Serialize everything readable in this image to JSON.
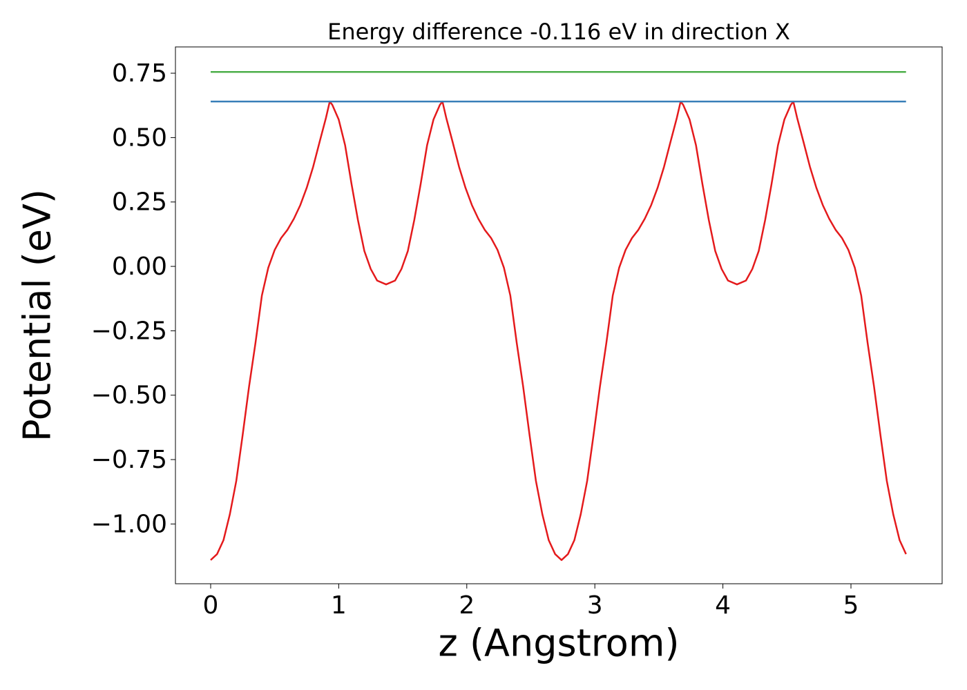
{
  "chart_data": {
    "type": "line",
    "title": "Energy difference -0.116 eV in direction X",
    "xlabel": "z (Angstrom)",
    "ylabel": "Potential (eV)",
    "xlim": [
      -0.275,
      5.712
    ],
    "ylim": [
      -1.232,
      0.852
    ],
    "xticks": [
      0,
      1,
      2,
      3,
      4,
      5
    ],
    "yticks": [
      {
        "value": -1,
        "label": "−1.00"
      },
      {
        "value": -0.75,
        "label": "−0.75"
      },
      {
        "value": -0.5,
        "label": "−0.50"
      },
      {
        "value": -0.25,
        "label": "−0.25"
      },
      {
        "value": 0,
        "label": "0.00"
      },
      0.25,
      {
        "value": 0.5,
        "label": "0.50"
      },
      0.75
    ],
    "grid": false,
    "series": [
      {
        "color": "#e41a1c",
        "x": [
          0,
          0.05,
          0.1,
          0.15,
          0.2,
          0.25,
          0.3,
          0.35,
          0.4,
          0.45,
          0.5,
          0.55,
          0.6,
          0.65,
          0.7,
          0.75,
          0.8,
          0.85,
          0.9,
          0.93,
          0.95,
          1.0,
          1.05,
          1.1,
          1.15,
          1.2,
          1.25,
          1.3,
          1.37,
          1.44,
          1.49,
          1.54,
          1.59,
          1.64,
          1.69,
          1.74,
          1.79,
          1.81,
          1.84,
          1.89,
          1.94,
          1.99,
          2.04,
          2.09,
          2.14,
          2.19,
          2.24,
          2.29,
          2.34,
          2.39,
          2.44,
          2.49,
          2.54,
          2.59,
          2.64,
          2.69,
          2.74,
          2.79,
          2.84,
          2.89,
          2.94,
          2.99,
          3.04,
          3.09,
          3.14,
          3.19,
          3.24,
          3.29,
          3.34,
          3.39,
          3.44,
          3.49,
          3.54,
          3.59,
          3.64,
          3.67,
          3.69,
          3.74,
          3.79,
          3.84,
          3.89,
          3.94,
          3.99,
          4.04,
          4.11,
          4.18,
          4.23,
          4.28,
          4.33,
          4.38,
          4.43,
          4.48,
          4.53,
          4.55,
          4.58,
          4.63,
          4.68,
          4.73,
          4.78,
          4.83,
          4.88,
          4.93,
          4.98,
          5.03,
          5.08,
          5.13,
          5.18,
          5.23,
          5.28,
          5.33,
          5.38,
          5.43
        ],
        "values": [
          -1.14,
          -1.117,
          -1.063,
          -0.962,
          -0.833,
          -0.654,
          -0.466,
          -0.297,
          -0.113,
          -0.005,
          0.064,
          0.11,
          0.142,
          0.185,
          0.238,
          0.305,
          0.386,
          0.482,
          0.576,
          0.64,
          0.627,
          0.57,
          0.47,
          0.32,
          0.18,
          0.06,
          -0.01,
          -0.055,
          -0.07,
          -0.055,
          -0.01,
          0.06,
          0.18,
          0.32,
          0.47,
          0.57,
          0.627,
          0.64,
          0.576,
          0.482,
          0.386,
          0.305,
          0.238,
          0.185,
          0.142,
          0.11,
          0.064,
          -0.005,
          -0.113,
          -0.297,
          -0.466,
          -0.654,
          -0.833,
          -0.962,
          -1.063,
          -1.117,
          -1.14,
          -1.117,
          -1.063,
          -0.962,
          -0.833,
          -0.654,
          -0.466,
          -0.297,
          -0.113,
          -0.005,
          0.064,
          0.11,
          0.142,
          0.185,
          0.238,
          0.305,
          0.386,
          0.482,
          0.576,
          0.64,
          0.627,
          0.57,
          0.47,
          0.32,
          0.18,
          0.06,
          -0.01,
          -0.055,
          -0.07,
          -0.055,
          -0.01,
          0.06,
          0.18,
          0.32,
          0.47,
          0.57,
          0.627,
          0.64,
          0.576,
          0.482,
          0.386,
          0.305,
          0.238,
          0.185,
          0.142,
          0.11,
          0.064,
          -0.005,
          -0.113,
          -0.297,
          -0.466,
          -0.654,
          -0.833,
          -0.962,
          -1.063,
          -1.117
        ]
      },
      {
        "color": "#377eb8",
        "x": [
          0,
          5.43
        ],
        "values": [
          0.64,
          0.64
        ]
      },
      {
        "color": "#4daf4a",
        "x": [
          0,
          5.43
        ],
        "values": [
          0.755,
          0.755
        ]
      }
    ]
  }
}
